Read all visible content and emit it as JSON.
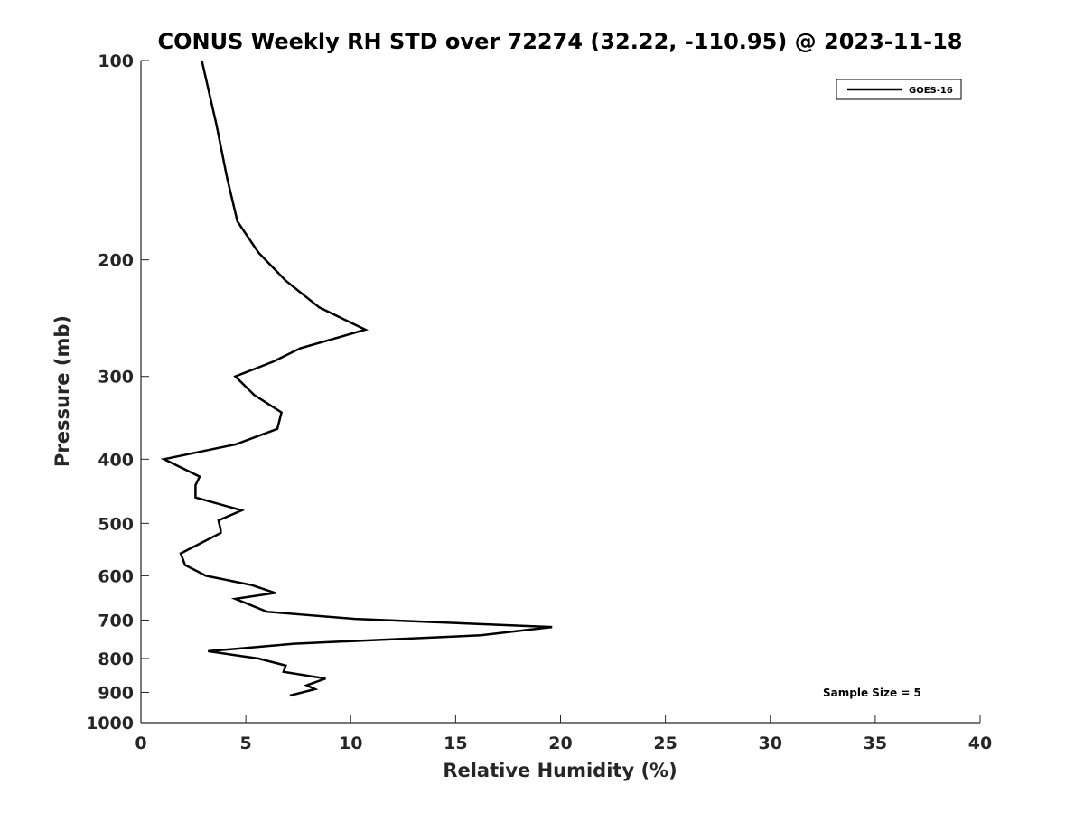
{
  "chart_data": {
    "type": "line",
    "title": "CONUS Weekly RH STD over 72274 (32.22, -110.95) @ 2023-11-18",
    "xlabel": "Relative Humidity (%)",
    "ylabel": "Pressure (mb)",
    "xlim": [
      0,
      40
    ],
    "ylim": [
      100,
      1000
    ],
    "yscale": "log",
    "x_ticks": [
      0,
      5,
      10,
      15,
      20,
      25,
      30,
      35,
      40
    ],
    "x_tick_labels": [
      "0",
      "5",
      "10",
      "15",
      "20",
      "25",
      "30",
      "35",
      "40"
    ],
    "y_ticks": [
      100,
      200,
      300,
      400,
      500,
      600,
      700,
      800,
      900,
      1000
    ],
    "y_tick_labels": [
      "100",
      "200",
      "300",
      "400",
      "500",
      "600",
      "700",
      "800",
      "900",
      "1000"
    ],
    "legend_position": "top-right",
    "series": [
      {
        "name": "GOES-16",
        "color": "#000000",
        "points": [
          [
            2.9,
            100
          ],
          [
            3.6,
            125
          ],
          [
            4.1,
            150
          ],
          [
            4.6,
            175
          ],
          [
            5.6,
            195
          ],
          [
            6.9,
            215
          ],
          [
            8.5,
            236
          ],
          [
            10.7,
            255
          ],
          [
            7.6,
            272
          ],
          [
            6.3,
            285
          ],
          [
            4.5,
            300
          ],
          [
            5.4,
            320
          ],
          [
            6.7,
            340
          ],
          [
            6.5,
            360
          ],
          [
            4.5,
            380
          ],
          [
            1.1,
            400
          ],
          [
            2.8,
            425
          ],
          [
            2.6,
            438
          ],
          [
            2.6,
            457
          ],
          [
            4.8,
            478
          ],
          [
            3.7,
            495
          ],
          [
            3.8,
            512
          ],
          [
            3.8,
            517
          ],
          [
            1.9,
            555
          ],
          [
            2.1,
            578
          ],
          [
            3.1,
            600
          ],
          [
            5.3,
            620
          ],
          [
            6.4,
            637
          ],
          [
            4.5,
            650
          ],
          [
            6.0,
            680
          ],
          [
            10.2,
            697
          ],
          [
            19.6,
            717
          ],
          [
            16.2,
            738
          ],
          [
            7.3,
            760
          ],
          [
            3.2,
            780
          ],
          [
            5.6,
            800
          ],
          [
            6.9,
            820
          ],
          [
            6.8,
            838
          ],
          [
            8.8,
            858
          ],
          [
            7.9,
            878
          ],
          [
            8.3,
            890
          ],
          [
            7.1,
            910
          ]
        ]
      }
    ],
    "annotations": [
      "Sample Size = 5"
    ]
  }
}
